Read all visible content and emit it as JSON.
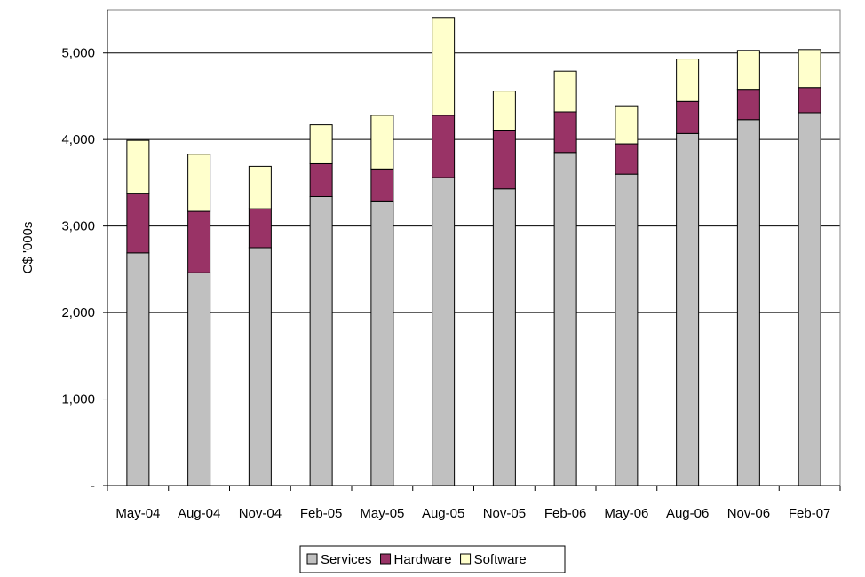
{
  "chart_data": {
    "type": "bar",
    "stacked": true,
    "title": "",
    "xlabel": "",
    "ylabel": "C$ '000s",
    "ylim": [
      0,
      5500
    ],
    "yticks": [
      0,
      1000,
      2000,
      3000,
      4000,
      5000
    ],
    "ytick_labels": [
      "-",
      "1,000",
      "2,000",
      "3,000",
      "4,000",
      "5,000"
    ],
    "grid": true,
    "legend_position": "bottom",
    "categories": [
      "May-04",
      "Aug-04",
      "Nov-04",
      "Feb-05",
      "May-05",
      "Aug-05",
      "Nov-05",
      "Feb-06",
      "May-06",
      "Aug-06",
      "Nov-06",
      "Feb-07"
    ],
    "series": [
      {
        "name": "Services",
        "color": "#c0c0c0",
        "values": [
          2690,
          2460,
          2750,
          3340,
          3290,
          3560,
          3430,
          3850,
          3600,
          4070,
          4230,
          4310
        ]
      },
      {
        "name": "Hardware",
        "color": "#993366",
        "values": [
          690,
          710,
          450,
          380,
          370,
          720,
          670,
          470,
          350,
          370,
          350,
          290
        ]
      },
      {
        "name": "Software",
        "color": "#ffffcc",
        "values": [
          610,
          660,
          490,
          450,
          620,
          1130,
          460,
          470,
          440,
          490,
          450,
          440
        ]
      }
    ]
  }
}
